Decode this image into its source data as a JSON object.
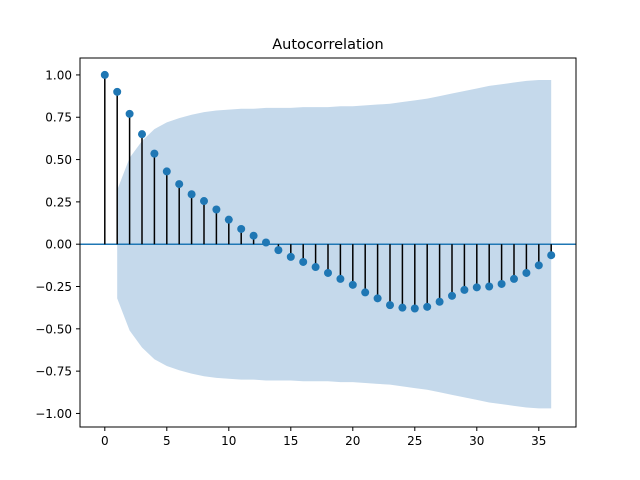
{
  "chart_data": {
    "type": "stem",
    "title": "Autocorrelation",
    "xlabel": "",
    "ylabel": "",
    "xlim": [
      -2,
      38
    ],
    "ylim": [
      -1.08,
      1.1
    ],
    "x_ticks": [
      0,
      5,
      10,
      15,
      20,
      25,
      30,
      35
    ],
    "y_ticks": [
      1.0,
      0.75,
      0.5,
      0.25,
      0.0,
      -0.25,
      -0.5,
      -0.75,
      -1.0
    ],
    "y_tick_labels": [
      "1.00",
      "0.75",
      "0.50",
      "0.25",
      "0.00",
      "−0.25",
      "−0.50",
      "−0.75",
      "−1.00"
    ],
    "lags": [
      0,
      1,
      2,
      3,
      4,
      5,
      6,
      7,
      8,
      9,
      10,
      11,
      12,
      13,
      14,
      15,
      16,
      17,
      18,
      19,
      20,
      21,
      22,
      23,
      24,
      25,
      26,
      27,
      28,
      29,
      30,
      31,
      32,
      33,
      34,
      35,
      36
    ],
    "acf": [
      1.0,
      0.9,
      0.77,
      0.65,
      0.535,
      0.43,
      0.355,
      0.295,
      0.255,
      0.205,
      0.145,
      0.09,
      0.05,
      0.01,
      -0.035,
      -0.075,
      -0.105,
      -0.135,
      -0.17,
      -0.205,
      -0.24,
      -0.285,
      -0.32,
      -0.36,
      -0.375,
      -0.38,
      -0.37,
      -0.34,
      -0.305,
      -0.27,
      -0.255,
      -0.25,
      -0.235,
      -0.205,
      -0.17,
      -0.125,
      -0.065
    ],
    "confint_upper": [
      0.0,
      0.32,
      0.51,
      0.61,
      0.68,
      0.72,
      0.745,
      0.765,
      0.78,
      0.79,
      0.795,
      0.8,
      0.8,
      0.805,
      0.805,
      0.805,
      0.81,
      0.81,
      0.81,
      0.815,
      0.815,
      0.82,
      0.825,
      0.83,
      0.84,
      0.85,
      0.86,
      0.875,
      0.89,
      0.905,
      0.92,
      0.935,
      0.945,
      0.955,
      0.965,
      0.97,
      0.97
    ],
    "confint_lower": [
      0.0,
      -0.32,
      -0.51,
      -0.61,
      -0.68,
      -0.72,
      -0.745,
      -0.765,
      -0.78,
      -0.79,
      -0.795,
      -0.8,
      -0.8,
      -0.805,
      -0.805,
      -0.805,
      -0.81,
      -0.81,
      -0.81,
      -0.815,
      -0.815,
      -0.82,
      -0.825,
      -0.83,
      -0.84,
      -0.85,
      -0.86,
      -0.875,
      -0.89,
      -0.905,
      -0.92,
      -0.935,
      -0.945,
      -0.955,
      -0.965,
      -0.97,
      -0.97
    ],
    "zero_line": 0.0,
    "grid": false,
    "legend": "none",
    "colors": {
      "marker": "#1f77b4",
      "stem": "#000000",
      "zero_line": "#1f77b4",
      "confidence_band": "#c5d9eb"
    }
  }
}
